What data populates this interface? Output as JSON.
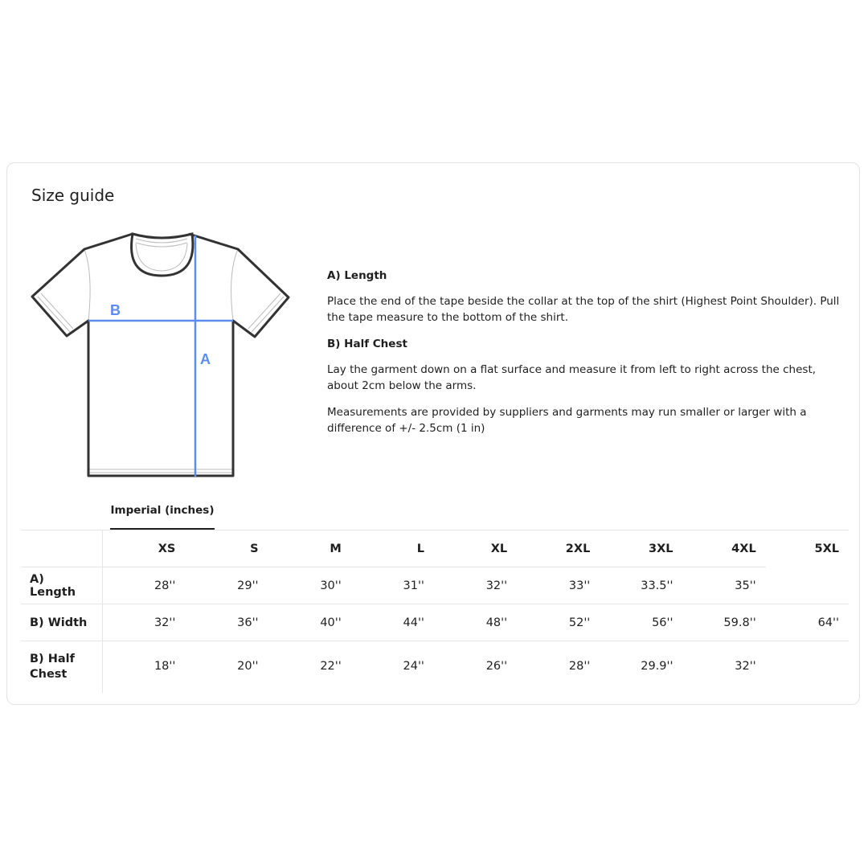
{
  "title": "Size guide",
  "diagram": {
    "label_a": "A",
    "label_b": "B",
    "accent_color": "#5b8def"
  },
  "info": {
    "length_heading": "A) Length",
    "length_text": "Place the end of the tape beside the collar at the top of the shirt (Highest Point Shoulder). Pull the tape measure to the bottom of the shirt.",
    "chest_heading": "B) Half Chest",
    "chest_text": "Lay the garment down on a flat surface and measure it from left to right across the chest, about 2cm below the arms.",
    "note": "Measurements are provided by suppliers and garments may run smaller or larger with a difference of +/- 2.5cm (1 in)"
  },
  "tab": "Imperial (inches)",
  "table": {
    "sizes": [
      "XS",
      "S",
      "M",
      "L",
      "XL",
      "2XL",
      "3XL",
      "4XL",
      "5XL"
    ],
    "rows": [
      {
        "label": "A) Length",
        "values": [
          "28''",
          "29''",
          "30''",
          "31''",
          "32''",
          "33''",
          "33.5''",
          "35''",
          ""
        ]
      },
      {
        "label": "B) Width",
        "values": [
          "32''",
          "36''",
          "40''",
          "44''",
          "48''",
          "52''",
          "56''",
          "59.8''",
          "64''"
        ]
      },
      {
        "label": "B) Half Chest",
        "values": [
          "18''",
          "20''",
          "22''",
          "24''",
          "26''",
          "28''",
          "29.9''",
          "32''",
          ""
        ]
      }
    ]
  }
}
